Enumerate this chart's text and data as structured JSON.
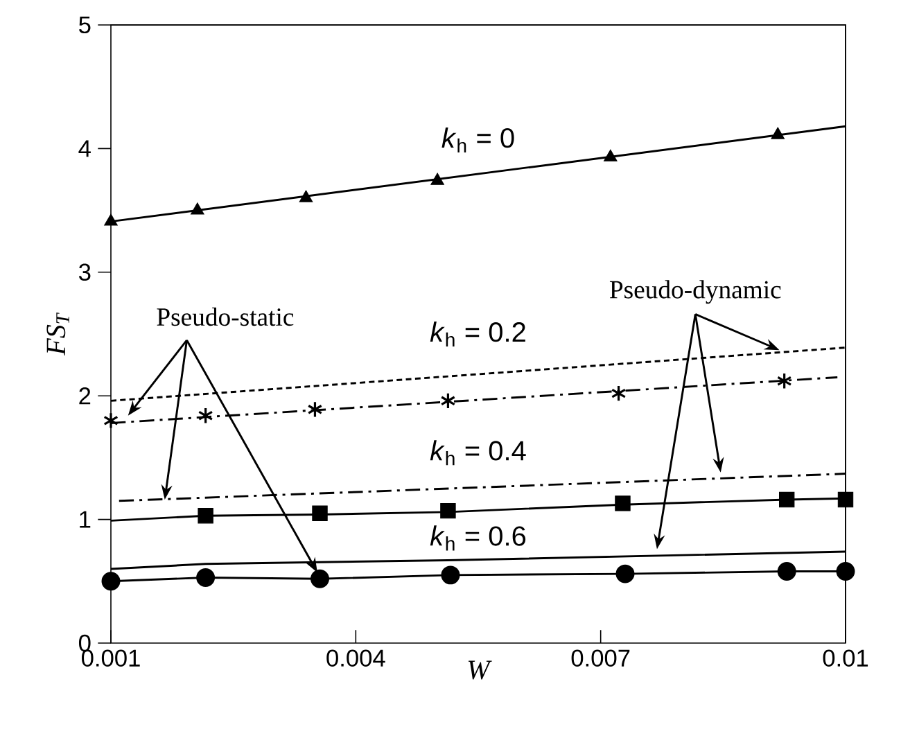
{
  "chart_data": {
    "type": "line",
    "xlabel": "W",
    "ylabel": "FS$_{T}$",
    "xlim": [
      0.001,
      0.01
    ],
    "ylim": [
      0,
      5
    ],
    "xticks": [
      0.001,
      0.004,
      0.007,
      0.01
    ],
    "yticks": [
      0,
      1,
      2,
      3,
      4,
      5
    ],
    "grid": false,
    "series": [
      {
        "color": "#000000",
        "line_style": "solid",
        "marker": "none",
        "x": [
          0.001,
          0.01
        ],
        "values": [
          3.41,
          4.18
        ]
      },
      {
        "type": "scatter",
        "color": "#000000",
        "marker": "triangle",
        "x": [
          0.001,
          0.00206,
          0.00339,
          0.005,
          0.00712,
          0.00917
        ],
        "values": [
          3.41,
          3.5,
          3.6,
          3.74,
          3.93,
          4.11
        ]
      },
      {
        "color": "#000000",
        "line_style": "dotted",
        "marker": "none",
        "x": [
          0.001,
          0.01
        ],
        "values": [
          1.96,
          2.39
        ]
      },
      {
        "color": "#000000",
        "line_style": "dashdot",
        "marker": "none",
        "x": [
          0.001,
          0.0099
        ],
        "values": [
          1.78,
          2.15
        ]
      },
      {
        "type": "scatter",
        "color": "#000000",
        "marker": "cross",
        "x": [
          0.001,
          0.00216,
          0.0035,
          0.00513,
          0.00722,
          0.00925
        ],
        "values": [
          1.8,
          1.84,
          1.89,
          1.96,
          2.02,
          2.12
        ]
      },
      {
        "color": "#000000",
        "line_style": "dashdot",
        "marker": "none",
        "x": [
          0.0011,
          0.01
        ],
        "values": [
          1.15,
          1.37
        ]
      },
      {
        "color": "#000000",
        "line_style": "solid",
        "marker": "none",
        "x": [
          0.001,
          0.00216,
          0.00356,
          0.00513,
          0.00727,
          0.00928,
          0.01
        ],
        "values": [
          0.99,
          1.03,
          1.04,
          1.06,
          1.12,
          1.16,
          1.17
        ]
      },
      {
        "type": "scatter",
        "color": "#000000",
        "marker": "square",
        "x": [
          0.00216,
          0.00356,
          0.00513,
          0.00727,
          0.00928,
          0.01
        ],
        "values": [
          1.03,
          1.05,
          1.07,
          1.13,
          1.16,
          1.16
        ]
      },
      {
        "color": "#000000",
        "line_style": "solid",
        "marker": "none",
        "x": [
          0.001,
          0.00216,
          0.00513,
          0.01
        ],
        "values": [
          0.6,
          0.64,
          0.67,
          0.74
        ]
      },
      {
        "color": "#000000",
        "line_style": "solid",
        "marker": "circle",
        "x": [
          0.001,
          0.00216,
          0.00356,
          0.00516,
          0.0073,
          0.00928,
          0.01
        ],
        "values": [
          0.5,
          0.53,
          0.52,
          0.55,
          0.56,
          0.58,
          0.58
        ]
      }
    ],
    "annotations": [
      "*k*$_{h}$ = 0",
      "*k*$_{h}$ = 0.2",
      "*k*$_{h}$ = 0.4",
      "*k*$_{h}$ = 0.6",
      {
        "text": "Pseudo-static",
        "x": 0.00166,
        "y": 1.16
      },
      {
        "text": "Pseudo-dynamic",
        "x": 0.00847,
        "y": 1.38
      }
    ]
  }
}
